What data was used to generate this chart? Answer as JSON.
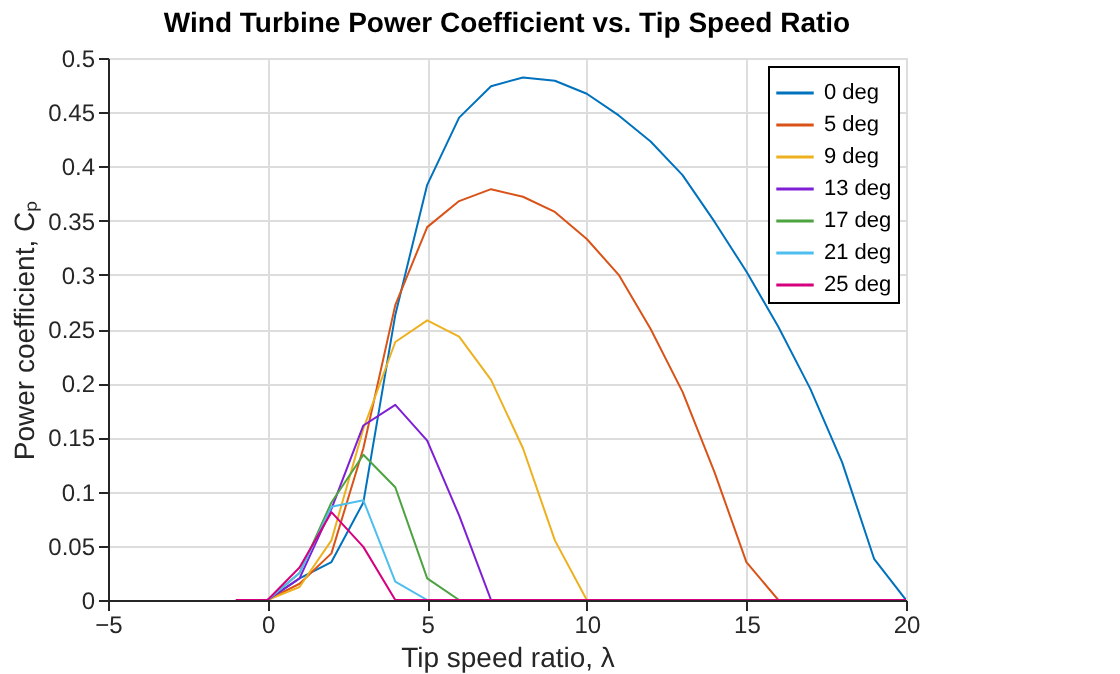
{
  "chart_data": {
    "type": "line",
    "title": "Wind Turbine Power Coefficient vs. Tip Speed Ratio",
    "xlabel": "Tip speed ratio, λ",
    "ylabel": "Power coefficient, Cₚ",
    "x": [
      -1,
      0,
      1,
      2,
      3,
      4,
      5,
      6,
      7,
      8,
      9,
      10,
      11,
      12,
      13,
      14,
      15,
      16,
      17,
      18,
      19,
      20
    ],
    "series": [
      {
        "name": "0 deg",
        "color": "#0072BD",
        "values": [
          null,
          0,
          0.02,
          0.035,
          0.09,
          0.263,
          0.383,
          0.445,
          0.474,
          0.482,
          0.479,
          0.467,
          0.447,
          0.423,
          0.392,
          0.349,
          0.303,
          0.252,
          0.195,
          0.127,
          0.038,
          0
        ]
      },
      {
        "name": "5 deg",
        "color": "#D95319",
        "values": [
          null,
          0,
          0.015,
          0.043,
          0.14,
          0.272,
          0.344,
          0.368,
          0.379,
          0.372,
          0.358,
          0.333,
          0.3,
          0.25,
          0.192,
          0.118,
          0.035,
          0,
          null,
          null,
          null,
          null
        ]
      },
      {
        "name": "9 deg",
        "color": "#EDB120",
        "values": [
          null,
          0,
          0.012,
          0.055,
          0.158,
          0.238,
          0.258,
          0.243,
          0.203,
          0.14,
          0.055,
          0,
          null,
          null,
          null,
          null,
          null,
          null,
          null,
          null,
          null,
          null
        ]
      },
      {
        "name": "13 deg",
        "color": "#7E1FD6",
        "values": [
          null,
          0,
          0.02,
          0.084,
          0.161,
          0.18,
          0.147,
          0.078,
          0,
          null,
          null,
          null,
          null,
          null,
          null,
          null,
          null,
          null,
          null,
          null,
          null,
          null
        ]
      },
      {
        "name": "17 deg",
        "color": "#4CA340",
        "values": [
          null,
          0,
          0.025,
          0.09,
          0.134,
          0.104,
          0.02,
          0,
          null,
          null,
          null,
          null,
          null,
          null,
          null,
          null,
          null,
          null,
          null,
          null,
          null,
          null
        ]
      },
      {
        "name": "21 deg",
        "color": "#4DBEEE",
        "values": [
          null,
          0,
          0.025,
          0.086,
          0.092,
          0.017,
          0,
          null,
          null,
          null,
          null,
          null,
          null,
          null,
          null,
          null,
          null,
          null,
          null,
          null,
          null,
          null
        ]
      },
      {
        "name": "25 deg",
        "color": "#D6007F",
        "values": [
          0,
          0,
          0.03,
          0.081,
          0.049,
          0,
          0,
          0,
          0,
          0,
          0,
          0,
          0,
          0,
          0,
          0,
          0,
          0,
          0,
          0,
          0,
          0
        ]
      }
    ],
    "xlim": [
      -5,
      20
    ],
    "xticks": [
      -5,
      0,
      5,
      10,
      15,
      20
    ],
    "ylim": [
      0,
      0.5
    ],
    "yticks": [
      0,
      0.05,
      0.1,
      0.15,
      0.2,
      0.25,
      0.3,
      0.35,
      0.4,
      0.45,
      0.5
    ],
    "grid": true,
    "legend": "top right"
  }
}
